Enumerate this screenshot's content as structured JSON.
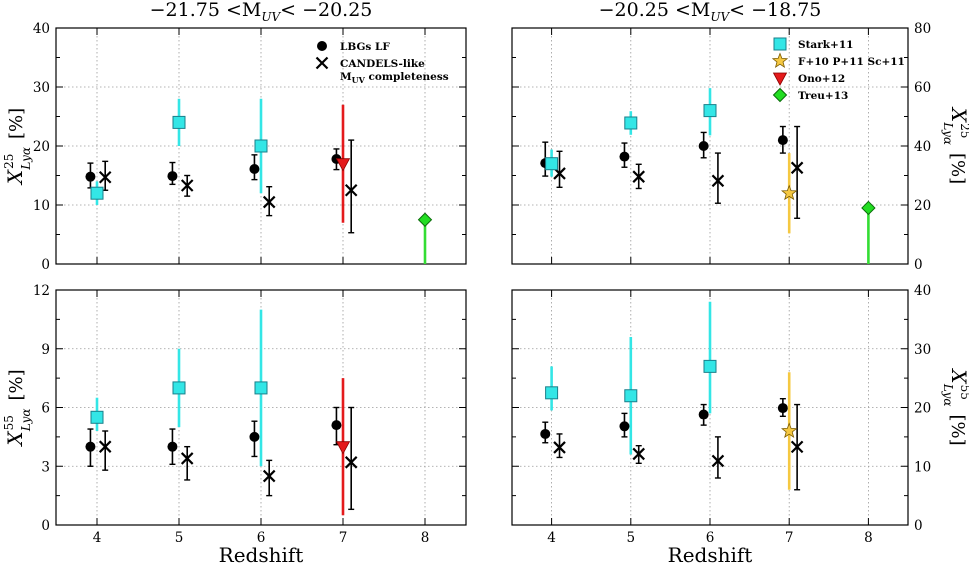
{
  "chart_data": [
    {
      "id": "top-left",
      "type": "scatter",
      "title": "−21.75 <M_UV< −20.25",
      "xlabel": "",
      "ylabel": "X^25_Lyα  [%]",
      "xlim": [
        3.5,
        8.5
      ],
      "ylim": [
        0,
        40
      ],
      "yticks": [
        0,
        10,
        20,
        30,
        40
      ],
      "ytick_labels": [
        "0",
        "10",
        "20",
        "30",
        "40"
      ],
      "xticks": [
        4,
        5,
        6,
        7,
        8
      ],
      "xtick_labels": [],
      "series": [
        {
          "name": "LBGs LF",
          "marker": "circle",
          "color": "#000000",
          "points": [
            {
              "x": 3.92,
              "y": 14.8,
              "lo": 12.9,
              "hi": 17.1
            },
            {
              "x": 4.92,
              "y": 14.9,
              "lo": 13.5,
              "hi": 17.2
            },
            {
              "x": 5.92,
              "y": 16.1,
              "lo": 14.3,
              "hi": 18.5
            },
            {
              "x": 6.92,
              "y": 17.8,
              "lo": 16.0,
              "hi": 19.5
            }
          ]
        },
        {
          "name": "CANDELS-like M_UV completeness",
          "marker": "x",
          "color": "#000000",
          "points": [
            {
              "x": 4.1,
              "y": 14.7,
              "lo": 12.5,
              "hi": 17.4
            },
            {
              "x": 5.1,
              "y": 13.3,
              "lo": 11.5,
              "hi": 15.0
            },
            {
              "x": 6.1,
              "y": 10.5,
              "lo": 8.2,
              "hi": 13.1
            },
            {
              "x": 7.1,
              "y": 12.5,
              "lo": 5.3,
              "hi": 21.0
            }
          ]
        },
        {
          "name": "Stark+11",
          "marker": "square",
          "color": "#33e6e6",
          "points": [
            {
              "x": 4.0,
              "y": 12.0,
              "lo": 10.0,
              "hi": 14.0
            },
            {
              "x": 5.0,
              "y": 24.0,
              "lo": 20.0,
              "hi": 28.0
            },
            {
              "x": 6.0,
              "y": 20.0,
              "lo": 12.0,
              "hi": 28.0
            }
          ]
        },
        {
          "name": "Ono+12",
          "marker": "triangle-down",
          "color": "#e41a1c",
          "points": [
            {
              "x": 7.0,
              "y": 17.0,
              "lo": 7.0,
              "hi": 27.0
            }
          ]
        },
        {
          "name": "Treu+13",
          "marker": "diamond",
          "color": "#22dd22",
          "points": [
            {
              "x": 8.0,
              "y": 7.5,
              "lo": 0.0,
              "hi": 7.5
            }
          ]
        }
      ],
      "legend": {
        "position": "top-right",
        "entries": [
          {
            "marker": "circle",
            "color": "#000000",
            "lines": [
              "LBGs LF"
            ]
          },
          {
            "marker": "x",
            "color": "#000000",
            "lines": [
              "CANDELS-like",
              "M_UV completeness"
            ]
          }
        ]
      }
    },
    {
      "id": "top-right",
      "type": "scatter",
      "title": "−20.25 <M_UV< −18.75",
      "xlabel": "",
      "ylabel": "X^25_Lyα  [%]",
      "xlim": [
        3.5,
        8.5
      ],
      "ylim": [
        0,
        80
      ],
      "yticks": [
        0,
        20,
        40,
        60,
        80
      ],
      "ytick_labels": [
        "0",
        "20",
        "40",
        "60",
        "80"
      ],
      "xticks": [
        4,
        5,
        6,
        7,
        8
      ],
      "xtick_labels": [],
      "series": [
        {
          "name": "LBGs LF",
          "marker": "circle",
          "color": "#000000",
          "points": [
            {
              "x": 3.92,
              "y": 34.2,
              "lo": 29.8,
              "hi": 41.3
            },
            {
              "x": 4.92,
              "y": 36.4,
              "lo": 32.8,
              "hi": 41.0
            },
            {
              "x": 5.92,
              "y": 40.0,
              "lo": 36.0,
              "hi": 44.6
            },
            {
              "x": 6.92,
              "y": 42.0,
              "lo": 37.6,
              "hi": 46.6
            }
          ]
        },
        {
          "name": "CANDELS-like M_UV completeness",
          "marker": "x",
          "color": "#000000",
          "points": [
            {
              "x": 4.1,
              "y": 30.7,
              "lo": 26.0,
              "hi": 38.2
            },
            {
              "x": 5.1,
              "y": 29.6,
              "lo": 25.6,
              "hi": 33.8
            },
            {
              "x": 6.1,
              "y": 28.2,
              "lo": 20.6,
              "hi": 37.6
            },
            {
              "x": 7.1,
              "y": 32.6,
              "lo": 15.5,
              "hi": 46.6
            }
          ]
        },
        {
          "name": "Stark+11",
          "marker": "square",
          "color": "#33e6e6",
          "points": [
            {
              "x": 4.0,
              "y": 34.0,
              "lo": 29.6,
              "hi": 38.8
            },
            {
              "x": 5.0,
              "y": 47.8,
              "lo": 43.8,
              "hi": 51.8
            },
            {
              "x": 6.0,
              "y": 52.0,
              "lo": 43.6,
              "hi": 59.6
            }
          ]
        },
        {
          "name": "F+10 P+11 Sc+11",
          "marker": "star",
          "color": "#f5c842",
          "points": [
            {
              "x": 7.0,
              "y": 24.0,
              "lo": 10.4,
              "hi": 37.6
            }
          ]
        },
        {
          "name": "Treu+13",
          "marker": "diamond",
          "color": "#22dd22",
          "points": [
            {
              "x": 8.0,
              "y": 19.0,
              "lo": 0.0,
              "hi": 19.0
            }
          ]
        }
      ],
      "legend": {
        "position": "top-right",
        "entries": [
          {
            "marker": "square",
            "color": "#33e6e6",
            "lines": [
              "Stark+11"
            ]
          },
          {
            "marker": "star",
            "color": "#f5c842",
            "lines": [
              "F+10 P+11 Sc+11"
            ]
          },
          {
            "marker": "triangle-down",
            "color": "#e41a1c",
            "lines": [
              "Ono+12"
            ]
          },
          {
            "marker": "diamond",
            "color": "#22dd22",
            "lines": [
              "Treu+13"
            ]
          }
        ]
      }
    },
    {
      "id": "bottom-left",
      "type": "scatter",
      "title": "",
      "xlabel": "Redshift",
      "ylabel": "X^55_Lyα  [%]",
      "xlim": [
        3.5,
        8.5
      ],
      "ylim": [
        0,
        12
      ],
      "yticks": [
        0,
        3,
        6,
        9,
        12
      ],
      "ytick_labels": [
        "0",
        "3",
        "6",
        "9",
        "12"
      ],
      "xticks": [
        4,
        5,
        6,
        7,
        8
      ],
      "xtick_labels": [
        "4",
        "5",
        "6",
        "7",
        "8"
      ],
      "series": [
        {
          "name": "LBGs LF",
          "marker": "circle",
          "color": "#000000",
          "points": [
            {
              "x": 3.92,
              "y": 4.0,
              "lo": 3.0,
              "hi": 4.9
            },
            {
              "x": 4.92,
              "y": 4.0,
              "lo": 3.1,
              "hi": 4.9
            },
            {
              "x": 5.92,
              "y": 4.5,
              "lo": 3.5,
              "hi": 5.3
            },
            {
              "x": 6.92,
              "y": 5.1,
              "lo": 4.1,
              "hi": 6.0
            }
          ]
        },
        {
          "name": "CANDELS-like M_UV completeness",
          "marker": "x",
          "color": "#000000",
          "points": [
            {
              "x": 4.1,
              "y": 4.0,
              "lo": 2.8,
              "hi": 4.8
            },
            {
              "x": 5.1,
              "y": 3.4,
              "lo": 2.3,
              "hi": 4.0
            },
            {
              "x": 6.1,
              "y": 2.5,
              "lo": 1.5,
              "hi": 3.3
            },
            {
              "x": 7.1,
              "y": 3.2,
              "lo": 0.8,
              "hi": 6.0
            }
          ]
        },
        {
          "name": "Stark+11",
          "marker": "square",
          "color": "#33e6e6",
          "points": [
            {
              "x": 4.0,
              "y": 5.5,
              "lo": 4.8,
              "hi": 6.5
            },
            {
              "x": 5.0,
              "y": 7.0,
              "lo": 5.0,
              "hi": 9.0
            },
            {
              "x": 6.0,
              "y": 7.0,
              "lo": 3.0,
              "hi": 11.0
            }
          ]
        },
        {
          "name": "Ono+12",
          "marker": "triangle-down",
          "color": "#e41a1c",
          "points": [
            {
              "x": 7.0,
              "y": 4.0,
              "lo": 0.5,
              "hi": 7.5
            }
          ]
        }
      ]
    },
    {
      "id": "bottom-right",
      "type": "scatter",
      "title": "",
      "xlabel": "Redshift",
      "ylabel": "X^55_Lyα  [%]",
      "xlim": [
        3.5,
        8.5
      ],
      "ylim": [
        0,
        40
      ],
      "yticks": [
        0,
        10,
        20,
        30,
        40
      ],
      "ytick_labels": [
        "0",
        "10",
        "20",
        "30",
        "40"
      ],
      "xticks": [
        4,
        5,
        6,
        7,
        8
      ],
      "xtick_labels": [
        "4",
        "5",
        "6",
        "7",
        "8"
      ],
      "series": [
        {
          "name": "LBGs LF",
          "marker": "circle",
          "color": "#000000",
          "points": [
            {
              "x": 3.92,
              "y": 15.5,
              "lo": 14.0,
              "hi": 17.5
            },
            {
              "x": 4.92,
              "y": 16.8,
              "lo": 15.0,
              "hi": 19.0
            },
            {
              "x": 5.92,
              "y": 18.8,
              "lo": 17.0,
              "hi": 20.5
            },
            {
              "x": 6.92,
              "y": 19.9,
              "lo": 18.5,
              "hi": 21.5
            }
          ]
        },
        {
          "name": "CANDELS-like M_UV completeness",
          "marker": "x",
          "color": "#000000",
          "points": [
            {
              "x": 4.1,
              "y": 13.2,
              "lo": 11.5,
              "hi": 15.5
            },
            {
              "x": 5.1,
              "y": 12.1,
              "lo": 10.5,
              "hi": 13.5
            },
            {
              "x": 6.1,
              "y": 10.9,
              "lo": 8.0,
              "hi": 15.0
            },
            {
              "x": 7.1,
              "y": 13.3,
              "lo": 6.0,
              "hi": 20.5
            }
          ]
        },
        {
          "name": "Stark+11",
          "marker": "square",
          "color": "#33e6e6",
          "points": [
            {
              "x": 4.0,
              "y": 22.5,
              "lo": 19.5,
              "hi": 27.0
            },
            {
              "x": 5.0,
              "y": 22.0,
              "lo": 12.0,
              "hi": 32.0
            },
            {
              "x": 6.0,
              "y": 27.0,
              "lo": 19.0,
              "hi": 38.0
            }
          ]
        },
        {
          "name": "F+10 P+11 Sc+11",
          "marker": "star",
          "color": "#f5c842",
          "points": [
            {
              "x": 7.0,
              "y": 16.0,
              "lo": 6.0,
              "hi": 26.0
            }
          ]
        }
      ]
    }
  ]
}
